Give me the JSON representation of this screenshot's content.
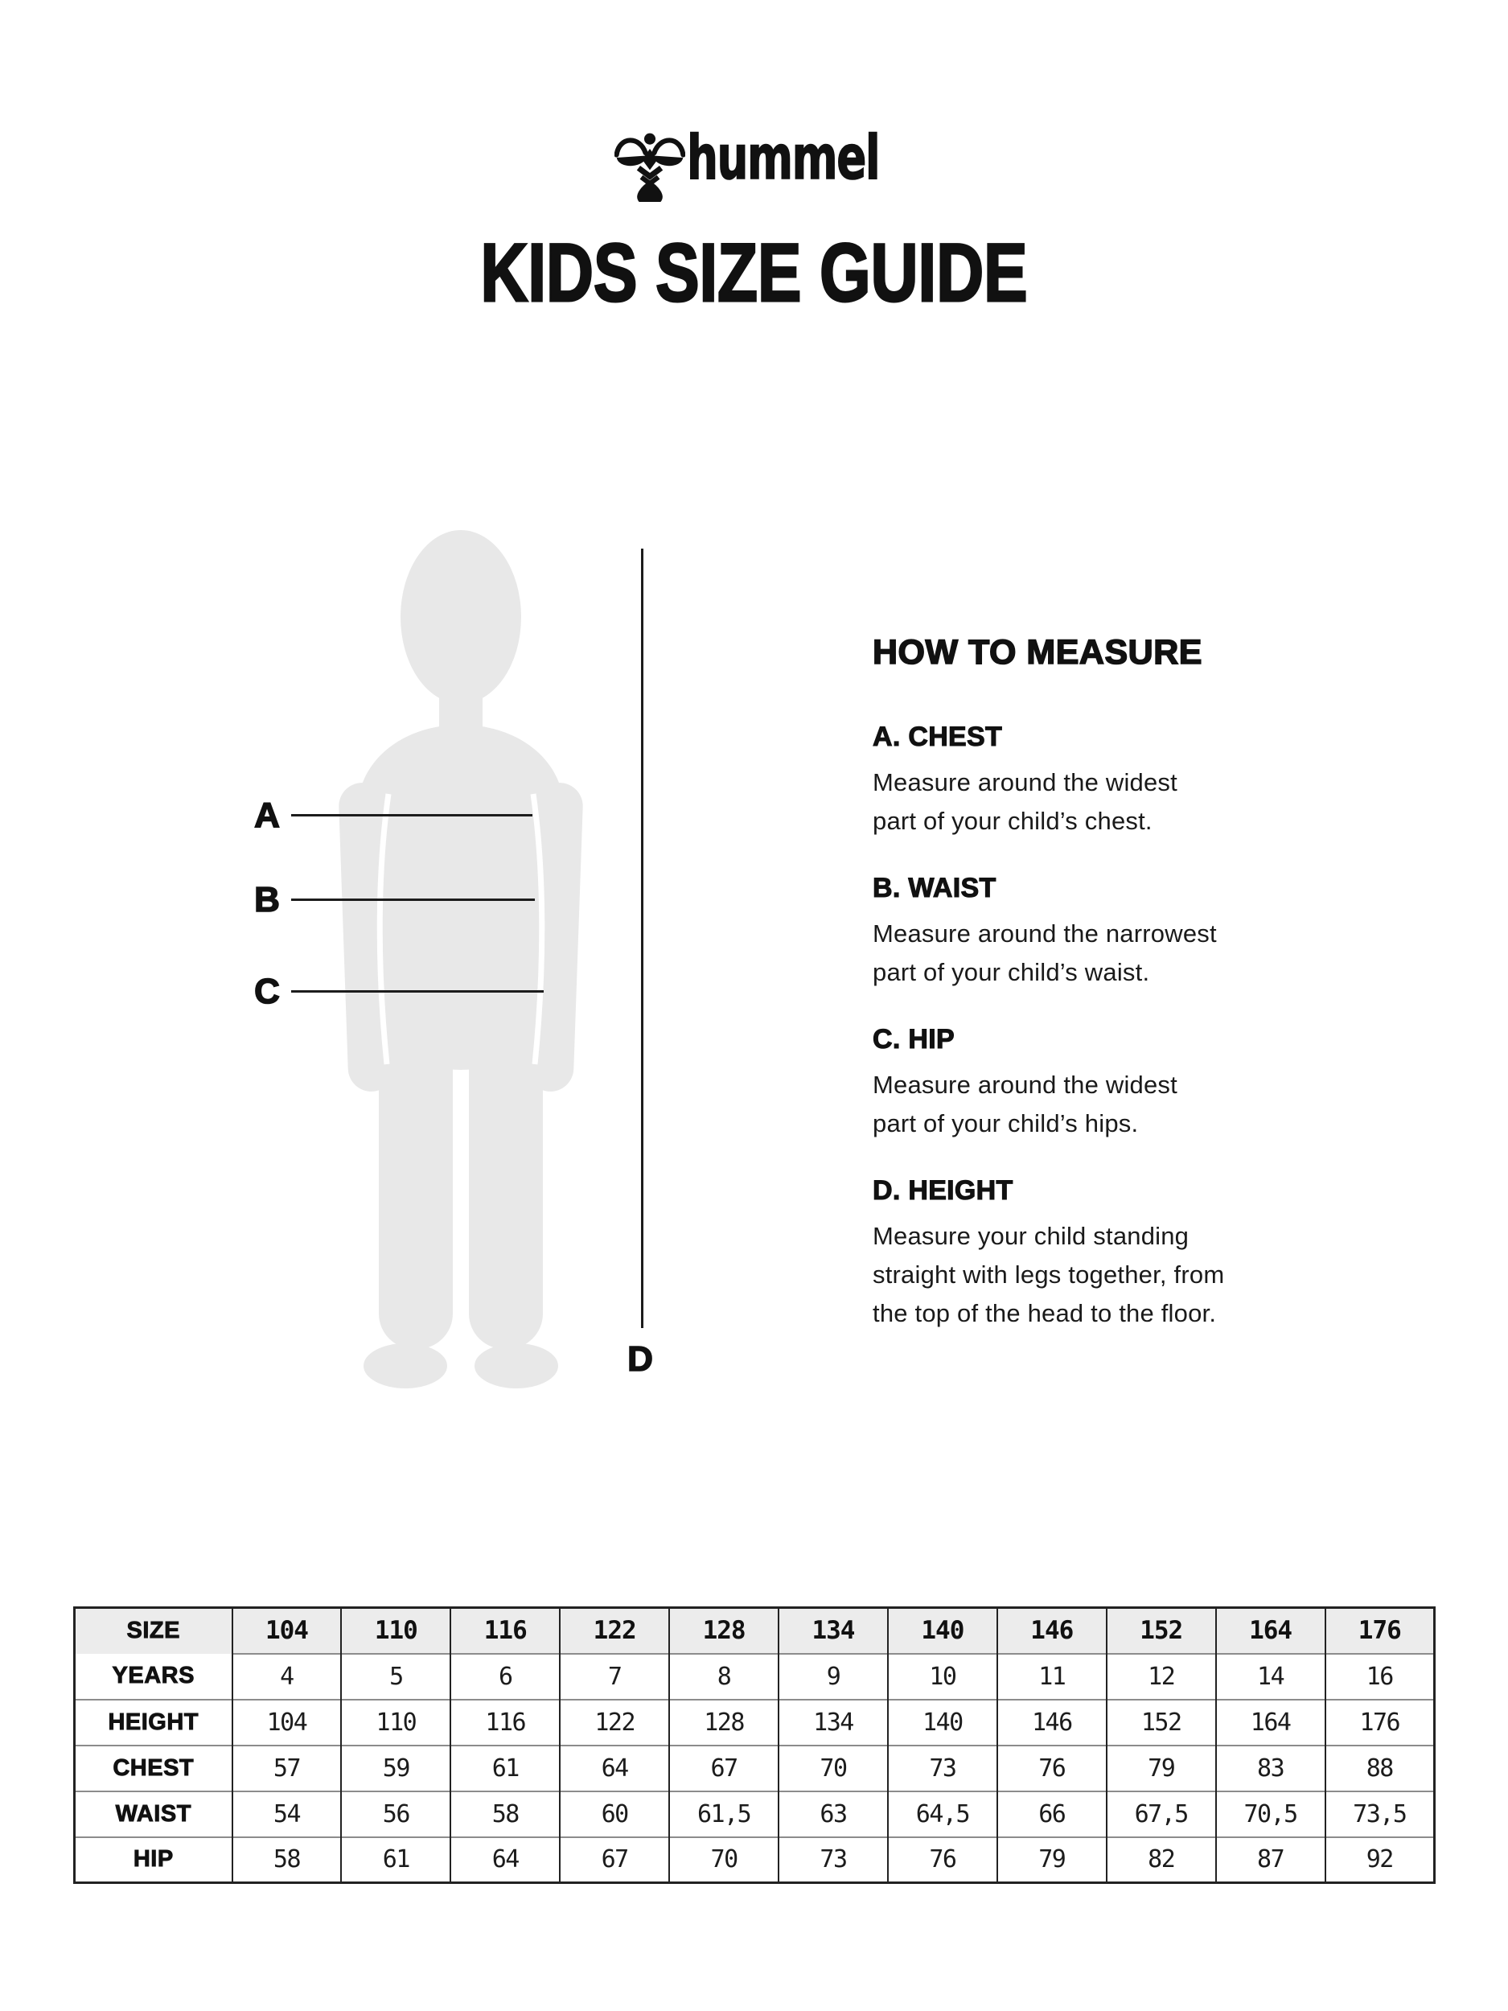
{
  "logo": {
    "brand": "hummel"
  },
  "title": "KIDS SIZE GUIDE",
  "diagram": {
    "labels": {
      "a": "A",
      "b": "B",
      "c": "C",
      "d": "D"
    }
  },
  "measure": {
    "heading": "HOW TO MEASURE",
    "sections": [
      {
        "heading": "A. CHEST",
        "body": "Measure around the widest\npart of your child’s chest."
      },
      {
        "heading": "B. WAIST",
        "body": "Measure around the narrowest\npart of your child’s waist."
      },
      {
        "heading": "C. HIP",
        "body": "Measure around the widest\npart of your child’s hips."
      },
      {
        "heading": "D. HEIGHT",
        "body": "Measure your child standing\nstraight with legs together, from\nthe top of the head to the floor."
      }
    ]
  },
  "size_table": {
    "header": [
      "SIZE",
      "104",
      "110",
      "116",
      "122",
      "128",
      "134",
      "140",
      "146",
      "152",
      "164",
      "176"
    ],
    "rows": [
      {
        "label": "YEARS",
        "values": [
          "4",
          "5",
          "6",
          "7",
          "8",
          "9",
          "10",
          "11",
          "12",
          "14",
          "16"
        ]
      },
      {
        "label": "HEIGHT",
        "values": [
          "104",
          "110",
          "116",
          "122",
          "128",
          "134",
          "140",
          "146",
          "152",
          "164",
          "176"
        ]
      },
      {
        "label": "CHEST",
        "values": [
          "57",
          "59",
          "61",
          "64",
          "67",
          "70",
          "73",
          "76",
          "79",
          "83",
          "88"
        ]
      },
      {
        "label": "WAIST",
        "values": [
          "54",
          "56",
          "58",
          "60",
          "61,5",
          "63",
          "64,5",
          "66",
          "67,5",
          "70,5",
          "73,5"
        ]
      },
      {
        "label": "HIP",
        "values": [
          "58",
          "61",
          "64",
          "67",
          "70",
          "73",
          "76",
          "79",
          "82",
          "87",
          "92"
        ]
      }
    ]
  },
  "colors": {
    "text": "#111111",
    "silhouette": "#e8e8e8",
    "table_header_bg": "#ececec",
    "grid_dark": "#222222",
    "grid_gray": "#8c8c8c"
  }
}
